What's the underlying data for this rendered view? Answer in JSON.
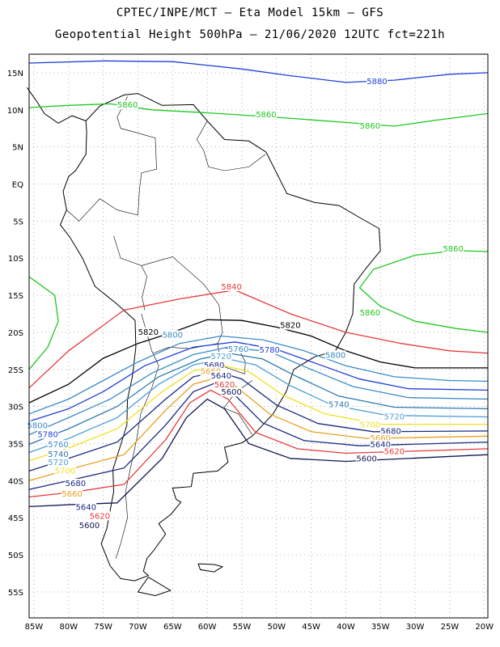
{
  "header": {
    "line1": "CPTEC/INPE/MCT –  Eta Model 15km – GFS",
    "line2": "Geopotential Height 500hPa – 21/06/2020 12UTC fct=221h"
  },
  "axes": {
    "lat_labels": [
      "15N",
      "10N",
      "5N",
      "EQ",
      "5S",
      "10S",
      "15S",
      "20S",
      "25S",
      "30S",
      "35S",
      "40S",
      "45S",
      "50S",
      "55S"
    ],
    "lon_labels": [
      "85W",
      "80W",
      "75W",
      "70W",
      "65W",
      "60W",
      "55W",
      "50W",
      "45W",
      "40W",
      "35W",
      "30W",
      "25W",
      "20W"
    ],
    "lat_range": [
      17.5,
      -58.5
    ],
    "lon_range": [
      -85.7,
      -19.5
    ],
    "grid": "dotted"
  },
  "colors": {
    "c5880": "#1e3fd8",
    "c5860": "#1ec81e",
    "c5840": "#e83a3a",
    "c5820": "#000000",
    "c5800": "#3a8cc8",
    "c5780": "#1e3fd8",
    "c5760": "#3a8cc8",
    "c5740": "#2a7ab0",
    "c5720": "#4aa0d8",
    "c5700": "#f0e020",
    "c5680": "#1a2a80",
    "c5660": "#e8a020",
    "c5620": "#e83a3a",
    "c5600": "#101850",
    "coast": "#000000"
  },
  "contour_labels": [
    {
      "text": "5880",
      "lon": -35.5,
      "lat": 13.7,
      "color": "c5880"
    },
    {
      "text": "5860",
      "lon": -71.5,
      "lat": 10.5,
      "color": "c5860"
    },
    {
      "text": "5860",
      "lon": -51.5,
      "lat": 9.2,
      "color": "c5860"
    },
    {
      "text": "5860",
      "lon": -36.5,
      "lat": 7.7,
      "color": "c5860"
    },
    {
      "text": "5860",
      "lon": -24.5,
      "lat": -8.9,
      "color": "c5860"
    },
    {
      "text": "5860",
      "lon": -36.5,
      "lat": -17.5,
      "color": "c5860"
    },
    {
      "text": "5840",
      "lon": -56.5,
      "lat": -14.0,
      "color": "c5840"
    },
    {
      "text": "5820",
      "lon": -68.5,
      "lat": -20.1,
      "color": "c5820"
    },
    {
      "text": "5820",
      "lon": -48.0,
      "lat": -19.2,
      "color": "c5820"
    },
    {
      "text": "5800",
      "lon": -65.0,
      "lat": -20.5,
      "color": "c5800"
    },
    {
      "text": "5800",
      "lon": -84.5,
      "lat": -32.7,
      "color": "c5800"
    },
    {
      "text": "5800",
      "lon": -41.5,
      "lat": -23.2,
      "color": "c5800"
    },
    {
      "text": "5780",
      "lon": -51.0,
      "lat": -22.5,
      "color": "c5780"
    },
    {
      "text": "5780",
      "lon": -83.0,
      "lat": -33.9,
      "color": "c5780"
    },
    {
      "text": "5760",
      "lon": -55.5,
      "lat": -22.4,
      "color": "c5760"
    },
    {
      "text": "5760",
      "lon": -81.5,
      "lat": -35.3,
      "color": "c5760"
    },
    {
      "text": "5740",
      "lon": -41.0,
      "lat": -29.9,
      "color": "c5740"
    },
    {
      "text": "5740",
      "lon": -81.5,
      "lat": -36.6,
      "color": "c5740"
    },
    {
      "text": "5720",
      "lon": -58.0,
      "lat": -23.4,
      "color": "c5720"
    },
    {
      "text": "5720",
      "lon": -33.0,
      "lat": -31.5,
      "color": "c5720"
    },
    {
      "text": "5720",
      "lon": -81.5,
      "lat": -37.7,
      "color": "c5720"
    },
    {
      "text": "5700",
      "lon": -36.5,
      "lat": -32.6,
      "color": "c5700"
    },
    {
      "text": "5700",
      "lon": -80.5,
      "lat": -38.8,
      "color": "c5700"
    },
    {
      "text": "5680",
      "lon": -59.0,
      "lat": -24.6,
      "color": "c5680"
    },
    {
      "text": "5680",
      "lon": -33.5,
      "lat": -33.5,
      "color": "c5680"
    },
    {
      "text": "5680",
      "lon": -79.0,
      "lat": -40.5,
      "color": "c5680"
    },
    {
      "text": "5660",
      "lon": -59.5,
      "lat": -25.4,
      "color": "c5660"
    },
    {
      "text": "5660",
      "lon": -35.0,
      "lat": -34.4,
      "color": "c5660"
    },
    {
      "text": "5660",
      "lon": -79.5,
      "lat": -41.9,
      "color": "c5660"
    },
    {
      "text": "5640",
      "lon": -58.0,
      "lat": -26.0,
      "color": "c5680"
    },
    {
      "text": "5640",
      "lon": -35.0,
      "lat": -35.3,
      "color": "c5680"
    },
    {
      "text": "5640",
      "lon": -77.5,
      "lat": -43.7,
      "color": "c5680"
    },
    {
      "text": "5620",
      "lon": -57.5,
      "lat": -27.2,
      "color": "c5620"
    },
    {
      "text": "5620",
      "lon": -33.0,
      "lat": -36.2,
      "color": "c5620"
    },
    {
      "text": "5620",
      "lon": -75.5,
      "lat": -44.9,
      "color": "c5620"
    },
    {
      "text": "5600",
      "lon": -56.5,
      "lat": -28.2,
      "color": "c5600"
    },
    {
      "text": "5600",
      "lon": -37.0,
      "lat": -37.2,
      "color": "c5600"
    },
    {
      "text": "5600",
      "lon": -77.0,
      "lat": -46.2,
      "color": "c5600"
    }
  ]
}
